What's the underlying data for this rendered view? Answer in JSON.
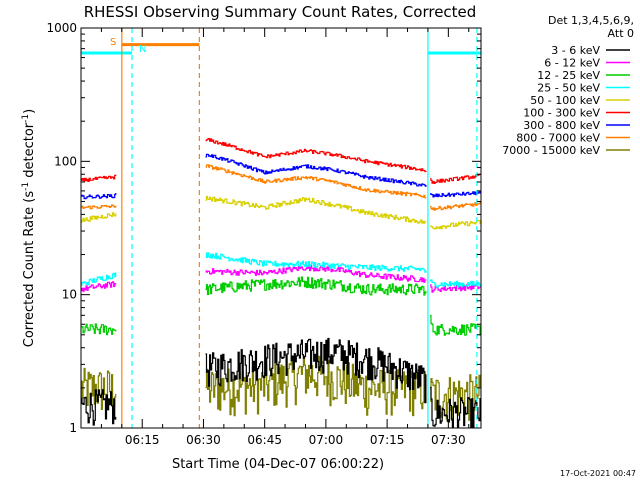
{
  "chart_data": {
    "type": "line",
    "title": "RHESSI Observing Summary Count Rates, Corrected",
    "xlabel": "Start Time (04-Dec-07 06:00:22)",
    "ylabel_main": "Corrected Count Rate (s",
    "ylabel_sup1": "-1",
    "ylabel_mid": " detector",
    "ylabel_sup2": "-1",
    "ylabel_end": ")",
    "yscale": "log",
    "ylim": [
      1,
      1000
    ],
    "xlim_minutes": [
      0,
      98
    ],
    "x_ticks": [
      {
        "m": 15,
        "label": "06:15"
      },
      {
        "m": 30,
        "label": "06:30"
      },
      {
        "m": 45,
        "label": "06:45"
      },
      {
        "m": 60,
        "label": "07:00"
      },
      {
        "m": 75,
        "label": "07:15"
      },
      {
        "m": 90,
        "label": "07:30"
      }
    ],
    "y_ticks": [
      {
        "v": 1,
        "label": "1"
      },
      {
        "v": 10,
        "label": "10"
      },
      {
        "v": 100,
        "label": "100"
      },
      {
        "v": 1000,
        "label": "1000"
      }
    ],
    "legend_header": [
      "Det 1,3,4,5,6,9,",
      "Att 0"
    ],
    "legend_position": "top-right",
    "footer_date": "17-Oct-2021 00:47",
    "annotations": [
      {
        "label": "S",
        "color": "#ff8000"
      },
      {
        "label": "N",
        "color": "#00ffff"
      }
    ],
    "gaps_minutes": [
      [
        8.5,
        30.5
      ],
      [
        84.5,
        85.5
      ]
    ],
    "flag_bars": [
      {
        "from": 0,
        "to": 12.5,
        "value": 650,
        "color": "#00ffff"
      },
      {
        "from": 10,
        "to": 29,
        "value": 750,
        "color": "#ff8000"
      },
      {
        "from": 85,
        "to": 98,
        "value": 650,
        "color": "#00ffff"
      }
    ],
    "vlines": [
      {
        "m": 10,
        "color": "#ff8000",
        "dash": false
      },
      {
        "m": 12.5,
        "color": "#00ffff",
        "dash": true
      },
      {
        "m": 29,
        "color": "#ff8000",
        "dash": true
      },
      {
        "m": 85,
        "color": "#00ffff",
        "dash": false
      },
      {
        "m": 97,
        "color": "#00ffff",
        "dash": true
      }
    ],
    "series": [
      {
        "name": "3 - 6 keV",
        "color": "#000000",
        "noise": 0.3,
        "points": [
          [
            0,
            1.5
          ],
          [
            8,
            1.5
          ],
          [
            31,
            2.8
          ],
          [
            45,
            3.3
          ],
          [
            55,
            3.6
          ],
          [
            62,
            3.7
          ],
          [
            70,
            3.3
          ],
          [
            84,
            2.3
          ],
          [
            86,
            1.3
          ],
          [
            98,
            1.3
          ]
        ]
      },
      {
        "name": "6 - 12 keV",
        "color": "#ff00ff",
        "noise": 0.05,
        "points": [
          [
            0,
            11
          ],
          [
            8,
            12
          ],
          [
            31,
            15
          ],
          [
            45,
            14.5
          ],
          [
            55,
            16
          ],
          [
            62,
            15.5
          ],
          [
            70,
            14
          ],
          [
            84,
            13
          ],
          [
            86,
            11
          ],
          [
            98,
            11.5
          ]
        ]
      },
      {
        "name": "12 - 25 keV",
        "color": "#00cc00",
        "noise": 0.1,
        "points": [
          [
            0,
            5.5
          ],
          [
            8,
            5.5
          ],
          [
            31,
            11
          ],
          [
            45,
            12
          ],
          [
            55,
            12.5
          ],
          [
            62,
            12
          ],
          [
            70,
            11
          ],
          [
            84,
            11
          ],
          [
            86,
            5.5
          ],
          [
            98,
            5.5
          ]
        ]
      },
      {
        "name": "25 - 50 keV",
        "color": "#00ffff",
        "noise": 0.05,
        "points": [
          [
            0,
            12
          ],
          [
            8,
            14
          ],
          [
            31,
            20
          ],
          [
            45,
            17
          ],
          [
            55,
            17
          ],
          [
            62,
            16.5
          ],
          [
            70,
            16
          ],
          [
            84,
            15.5
          ],
          [
            86,
            12
          ],
          [
            98,
            12
          ]
        ]
      },
      {
        "name": "50 - 100 keV",
        "color": "#d8d000",
        "noise": 0.04,
        "points": [
          [
            0,
            36
          ],
          [
            8,
            40
          ],
          [
            31,
            53
          ],
          [
            45,
            45
          ],
          [
            55,
            52
          ],
          [
            62,
            47
          ],
          [
            70,
            41
          ],
          [
            84,
            35
          ],
          [
            86,
            32
          ],
          [
            98,
            35
          ]
        ]
      },
      {
        "name": "100 - 300 keV",
        "color": "#ff0000",
        "noise": 0.03,
        "points": [
          [
            0,
            72
          ],
          [
            8,
            76
          ],
          [
            31,
            145
          ],
          [
            45,
            108
          ],
          [
            55,
            120
          ],
          [
            62,
            112
          ],
          [
            70,
            100
          ],
          [
            84,
            86
          ],
          [
            86,
            70
          ],
          [
            98,
            78
          ]
        ]
      },
      {
        "name": "300 - 800 keV",
        "color": "#0000ff",
        "noise": 0.03,
        "points": [
          [
            0,
            54
          ],
          [
            8,
            55
          ],
          [
            31,
            112
          ],
          [
            45,
            82
          ],
          [
            55,
            92
          ],
          [
            62,
            86
          ],
          [
            70,
            76
          ],
          [
            84,
            66
          ],
          [
            86,
            55
          ],
          [
            98,
            58
          ]
        ]
      },
      {
        "name": "800 - 7000 keV",
        "color": "#ff8000",
        "noise": 0.03,
        "points": [
          [
            0,
            45
          ],
          [
            8,
            46
          ],
          [
            31,
            92
          ],
          [
            45,
            70
          ],
          [
            55,
            76
          ],
          [
            62,
            70
          ],
          [
            70,
            61
          ],
          [
            84,
            55
          ],
          [
            86,
            44
          ],
          [
            98,
            48
          ]
        ]
      },
      {
        "name": "7000 - 15000 keV",
        "color": "#808000",
        "noise": 0.4,
        "points": [
          [
            0,
            2
          ],
          [
            8,
            2
          ],
          [
            31,
            2
          ],
          [
            45,
            2.1
          ],
          [
            55,
            2.6
          ],
          [
            62,
            2.4
          ],
          [
            70,
            2
          ],
          [
            84,
            2
          ],
          [
            86,
            1.8
          ],
          [
            98,
            1.8
          ]
        ]
      }
    ]
  }
}
